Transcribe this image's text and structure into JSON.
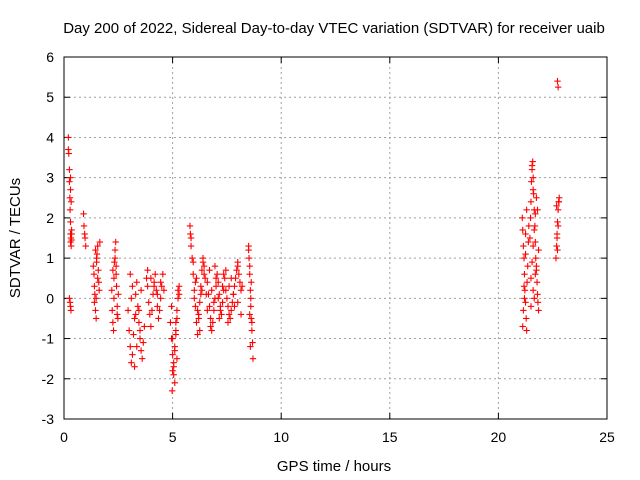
{
  "chart_data": {
    "type": "scatter",
    "title": "Day 200 of 2022, Sidereal Day-to-day VTEC variation (SDTVAR) for receiver uaib",
    "xlabel": "GPS time / hours",
    "ylabel": "SDTVAR / TECUs",
    "xlim": [
      0,
      25
    ],
    "ylim": [
      -3,
      6
    ],
    "xticks": [
      0,
      5,
      10,
      15,
      20,
      25
    ],
    "yticks": [
      -3,
      -2,
      -1,
      0,
      1,
      2,
      3,
      4,
      5,
      6
    ],
    "grid": true,
    "marker": "+",
    "color": "#ff0000",
    "series": [
      {
        "name": "SDTVAR",
        "x": [
          0.2,
          0.2,
          0.22,
          0.25,
          0.25,
          0.27,
          0.28,
          0.3,
          0.3,
          0.3,
          0.32,
          0.33,
          0.35,
          0.25,
          0.28,
          0.3,
          0.32,
          0.3,
          0.3,
          0.33,
          0.35,
          0.35,
          0.9,
          0.92,
          0.95,
          0.97,
          1.0,
          1.35,
          1.38,
          1.4,
          1.42,
          1.45,
          1.48,
          1.5,
          1.52,
          1.55,
          1.58,
          1.6,
          1.62,
          1.65,
          1.45,
          1.5,
          1.55,
          1.4,
          1.48,
          2.2,
          2.22,
          2.25,
          2.28,
          2.3,
          2.32,
          2.35,
          2.38,
          2.4,
          2.42,
          2.45,
          2.48,
          2.5,
          2.25,
          2.35,
          2.45,
          2.3,
          2.4,
          2.95,
          3.0,
          3.05,
          3.1,
          3.15,
          3.2,
          3.25,
          3.3,
          3.35,
          3.4,
          3.45,
          3.5,
          3.55,
          3.6,
          3.65,
          3.7,
          3.05,
          3.15,
          3.25,
          3.35,
          3.45,
          3.55,
          3.1,
          3.3,
          3.5,
          3.8,
          3.85,
          3.9,
          3.95,
          4.0,
          4.05,
          4.1,
          4.15,
          4.2,
          4.25,
          4.3,
          4.35,
          4.4,
          4.45,
          4.5,
          4.55,
          4.6,
          3.85,
          4.0,
          4.15,
          4.3,
          4.45,
          4.9,
          4.95,
          5.0,
          5.05,
          5.1,
          5.15,
          5.2,
          5.25,
          5.3,
          5.0,
          5.05,
          5.1,
          5.15,
          5.2,
          5.25,
          4.98,
          5.1,
          5.2,
          5.05,
          4.95,
          5.0,
          5.15,
          5.3,
          5.8,
          5.82,
          5.85,
          5.9,
          5.95,
          6.0,
          6.05,
          6.1,
          6.15,
          6.2,
          6.25,
          6.3,
          6.35,
          6.4,
          6.45,
          6.5,
          6.55,
          6.6,
          5.85,
          5.95,
          6.05,
          6.15,
          6.25,
          6.35,
          6.45,
          6.0,
          6.2,
          6.4,
          6.1,
          6.3,
          6.6,
          6.65,
          6.7,
          6.75,
          6.8,
          6.85,
          6.9,
          6.95,
          7.0,
          7.05,
          7.1,
          7.15,
          7.2,
          7.25,
          7.3,
          7.35,
          7.4,
          7.45,
          6.7,
          6.8,
          6.9,
          7.0,
          7.1,
          7.2,
          7.3,
          6.75,
          6.95,
          7.15,
          7.35,
          7.45,
          7.5,
          7.55,
          7.6,
          7.65,
          7.7,
          7.75,
          7.8,
          7.85,
          7.9,
          7.95,
          8.0,
          8.05,
          8.1,
          8.15,
          8.2,
          7.55,
          7.7,
          7.85,
          8.0,
          8.15,
          7.6,
          7.8,
          8.0,
          8.5,
          8.52,
          8.55,
          8.58,
          8.6,
          8.62,
          8.65,
          8.68,
          8.7,
          8.55,
          8.6,
          8.65,
          8.58,
          8.62,
          8.5,
          8.55,
          21.1,
          21.12,
          21.15,
          21.18,
          21.2,
          21.22,
          21.25,
          21.28,
          21.3,
          21.32,
          21.35,
          21.38,
          21.4,
          21.15,
          21.2,
          21.25,
          21.3,
          21.12,
          21.18,
          21.25,
          21.45,
          21.48,
          21.5,
          21.52,
          21.55,
          21.58,
          21.6,
          21.62,
          21.65,
          21.68,
          21.7,
          21.72,
          21.75,
          21.78,
          21.8,
          21.82,
          21.85,
          21.5,
          21.55,
          21.6,
          21.65,
          21.7,
          21.75,
          21.5,
          21.6,
          21.7,
          21.55,
          21.65,
          21.8,
          21.75,
          21.85,
          21.6,
          22.65,
          22.68,
          22.7,
          22.72,
          22.75,
          22.78,
          22.8,
          22.7,
          22.75,
          22.68,
          22.72,
          22.78,
          22.72,
          22.75
        ],
        "y": [
          4.0,
          3.7,
          3.6,
          3.2,
          2.9,
          2.5,
          2.2,
          1.9,
          1.6,
          1.4,
          1.5,
          1.3,
          1.7,
          0.0,
          -0.1,
          -0.2,
          -0.3,
          2.7,
          3.0,
          2.4,
          1.6,
          1.45,
          2.1,
          1.8,
          1.6,
          1.5,
          1.3,
          0.8,
          0.6,
          0.3,
          0.1,
          -0.3,
          -0.5,
          0.9,
          1.1,
          1.3,
          0.7,
          0.4,
          0.2,
          1.4,
          1.2,
          1.0,
          0.5,
          -0.1,
          0.0,
          0.2,
          -0.3,
          -0.6,
          -0.8,
          0.5,
          0.9,
          1.2,
          1.4,
          0.8,
          0.3,
          -0.2,
          -0.5,
          0.1,
          0.7,
          1.0,
          -0.4,
          0.0,
          0.6,
          -0.3,
          -0.8,
          -1.2,
          -1.6,
          -1.4,
          -0.9,
          -0.5,
          0.1,
          0.4,
          -0.2,
          -0.6,
          -1.0,
          -1.3,
          -1.5,
          -1.1,
          -0.7,
          0.6,
          0.3,
          -1.7,
          -1.2,
          -0.3,
          0.2,
          0.0,
          -0.4,
          -0.8,
          0.5,
          0.3,
          -0.1,
          -0.4,
          -0.7,
          -0.3,
          0.1,
          0.4,
          0.6,
          0.2,
          -0.2,
          -0.5,
          -0.3,
          0.0,
          0.3,
          0.6,
          0.2,
          0.7,
          0.5,
          0.3,
          0.1,
          0.4,
          -0.6,
          -1.0,
          -1.4,
          -1.7,
          -1.3,
          -0.9,
          -0.5,
          0.0,
          0.3,
          -1.8,
          -1.6,
          -1.2,
          -0.8,
          -0.3,
          0.2,
          -2.3,
          -2.1,
          -1.5,
          -1.9,
          -0.2,
          -1.0,
          -0.6,
          0.1,
          1.8,
          1.6,
          1.3,
          1.0,
          0.6,
          0.2,
          -0.2,
          -0.6,
          -0.9,
          -0.5,
          -0.1,
          0.3,
          0.7,
          1.0,
          0.8,
          0.5,
          0.1,
          -0.3,
          1.5,
          0.9,
          0.4,
          -0.3,
          -0.8,
          0.2,
          0.6,
          0.0,
          -0.4,
          0.9,
          0.5,
          0.1,
          0.4,
          0.1,
          -0.2,
          -0.5,
          -0.8,
          -0.6,
          -0.3,
          0.0,
          0.3,
          0.6,
          0.4,
          0.1,
          -0.2,
          -0.4,
          -0.1,
          0.2,
          0.5,
          0.7,
          0.7,
          0.2,
          -0.1,
          0.5,
          0.0,
          -0.3,
          0.3,
          -0.7,
          0.8,
          -0.5,
          0.6,
          0.2,
          0.0,
          -0.2,
          -0.4,
          -0.5,
          -0.3,
          -0.1,
          0.1,
          0.3,
          0.5,
          0.7,
          0.9,
          0.6,
          0.4,
          0.2,
          0.3,
          -0.6,
          0.5,
          -0.2,
          0.8,
          -0.4,
          0.3,
          0.1,
          -0.1,
          1.3,
          1.0,
          0.6,
          0.2,
          -0.2,
          -0.5,
          -0.8,
          -1.1,
          -1.5,
          0.8,
          0.0,
          -0.6,
          -1.2,
          0.4,
          1.2,
          -0.4,
          2.0,
          1.7,
          1.3,
          1.0,
          0.6,
          0.2,
          -0.1,
          -0.5,
          -0.8,
          0.4,
          0.8,
          1.4,
          1.8,
          -0.3,
          0.0,
          1.1,
          2.2,
          -0.7,
          0.3,
          1.6,
          1.5,
          2.0,
          2.4,
          2.9,
          3.2,
          3.4,
          3.0,
          2.6,
          2.2,
          1.8,
          1.4,
          1.0,
          0.7,
          0.4,
          0.1,
          -0.1,
          -0.3,
          0.5,
          0.9,
          1.3,
          1.7,
          2.1,
          2.5,
          -0.2,
          0.2,
          0.6,
          3.3,
          0.0,
          2.2,
          0.8,
          1.2,
          2.7,
          1.0,
          1.3,
          1.6,
          1.9,
          2.2,
          2.4,
          2.5,
          1.5,
          1.8,
          2.3,
          1.2,
          2.4,
          5.4,
          5.25
        ]
      }
    ]
  }
}
